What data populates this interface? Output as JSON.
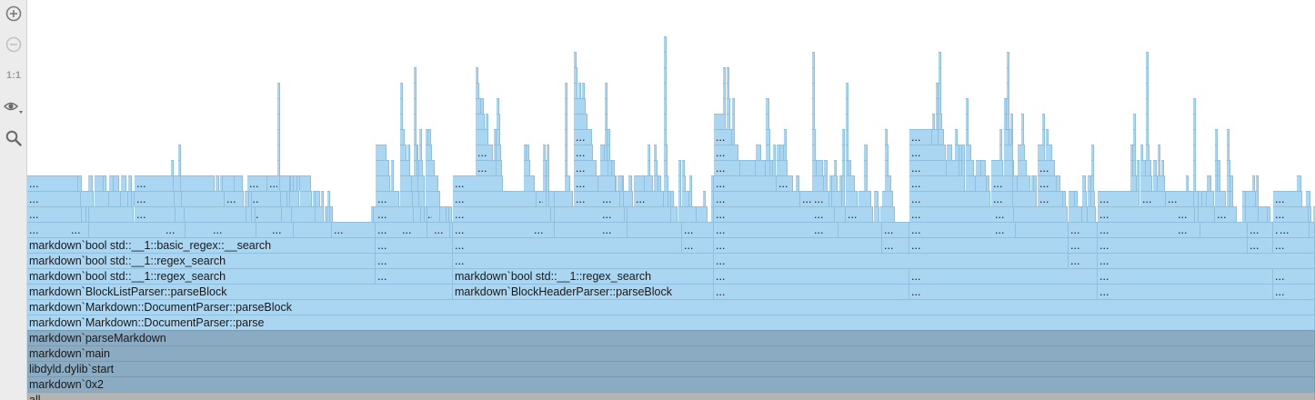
{
  "toolbar": {
    "zoom_in_icon": "zoom-in-icon",
    "zoom_out_icon": "zoom-out-icon",
    "actual_size_label": "1:1",
    "view_options_icon": "eye-icon",
    "search_icon": "search-icon"
  },
  "colors": {
    "frame": "#aad6f1",
    "frame_border": "#8fbfde",
    "dark_frame": "#8aabc1",
    "root_frame": "#b4b4b4",
    "toolbar_bg": "#ececec"
  },
  "frames": {
    "all": "all",
    "addr": "markdown`0x2",
    "start": "libdyld.dylib`start",
    "main": "markdown`main",
    "parse_markdown": "markdown`parseMarkdown",
    "parse": "markdown`Markdown::DocumentParser::parse",
    "parse_block": "markdown`Markdown::DocumentParser::parseBlock",
    "block_list_parse_block": "markdown`BlockListParser::parseBlock",
    "block_header_parse_block": "markdown`BlockHeaderParser::parseBlock",
    "regex_search_a": "markdown`bool std::__1::regex_search",
    "regex_search_b": "markdown`bool std::__1::regex_search",
    "regex_search_c": "markdown`bool std::__1::regex_search",
    "basic_regex_search": "markdown`bool std::__1::basic_regex::__search",
    "ellipsis": "..."
  }
}
